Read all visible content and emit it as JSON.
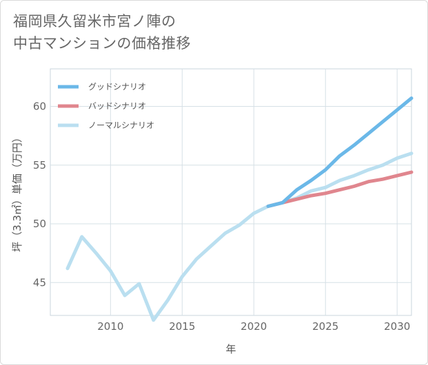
{
  "title_lines": [
    "福岡県久留米市宮ノ陣の",
    "中古マンションの価格推移"
  ],
  "chart_data": {
    "type": "line",
    "title": "福岡県久留米市宮ノ陣の中古マンションの価格推移",
    "xlabel": "年",
    "ylabel": "坪（3.3㎡）単価（万円）",
    "xlim": [
      2005.8,
      2031
    ],
    "ylim": [
      42.2,
      63.2
    ],
    "x_ticks": [
      2010,
      2015,
      2020,
      2025,
      2030
    ],
    "y_ticks": [
      45,
      50,
      55,
      60
    ],
    "series": [
      {
        "name": "グッドシナリオ",
        "color": "#6bb8e8",
        "x": [
          2021,
          2022,
          2023,
          2024,
          2025,
          2026,
          2027,
          2028,
          2029,
          2030,
          2031
        ],
        "values": [
          51.5,
          51.8,
          52.9,
          53.7,
          54.6,
          55.8,
          56.7,
          57.7,
          58.7,
          59.7,
          60.7
        ]
      },
      {
        "name": "バッドシナリオ",
        "color": "#e0868e",
        "x": [
          2021,
          2022,
          2023,
          2024,
          2025,
          2026,
          2027,
          2028,
          2029,
          2030,
          2031
        ],
        "values": [
          51.5,
          51.8,
          52.1,
          52.4,
          52.6,
          52.9,
          53.2,
          53.6,
          53.8,
          54.1,
          54.4
        ]
      },
      {
        "name": "ノーマルシナリオ",
        "color": "#badff0",
        "x": [
          2007,
          2008,
          2009,
          2010,
          2011,
          2012,
          2013,
          2014,
          2015,
          2016,
          2017,
          2018,
          2019,
          2020,
          2021,
          2022,
          2023,
          2024,
          2025,
          2026,
          2027,
          2028,
          2029,
          2030,
          2031
        ],
        "values": [
          46.2,
          48.9,
          47.5,
          46.0,
          43.9,
          44.9,
          41.8,
          43.5,
          45.5,
          47.0,
          48.1,
          49.2,
          49.9,
          50.9,
          51.5,
          51.8,
          52.2,
          52.8,
          53.1,
          53.7,
          54.1,
          54.6,
          55.0,
          55.6,
          56.0
        ]
      }
    ],
    "legend": "top-left",
    "grid": true
  }
}
